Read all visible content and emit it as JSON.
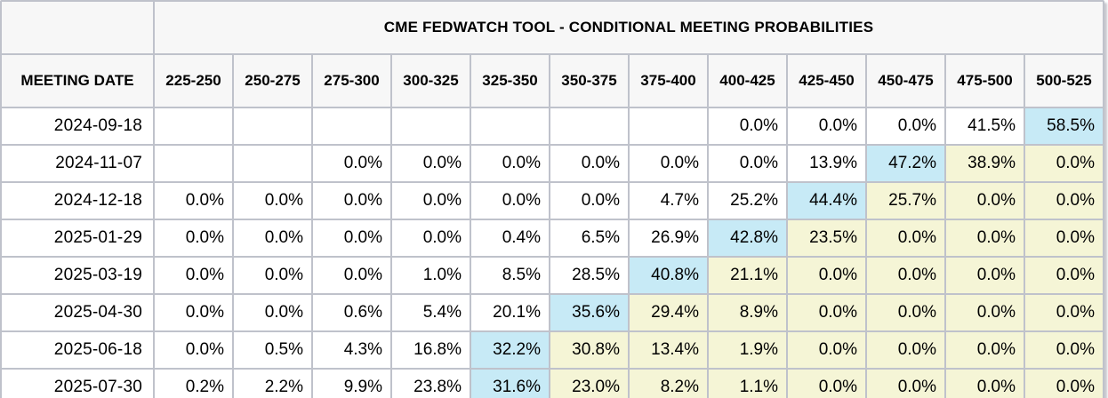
{
  "header": {
    "title": "CME FEDWATCH TOOL - CONDITIONAL MEETING PROBABILITIES",
    "meeting_date_label": "MEETING DATE",
    "rate_bins": [
      "225-250",
      "250-275",
      "275-300",
      "300-325",
      "325-350",
      "350-375",
      "375-400",
      "400-425",
      "425-450",
      "450-475",
      "475-500",
      "500-525"
    ]
  },
  "rows": [
    {
      "date": "2024-09-18",
      "values": [
        "",
        "",
        "",
        "",
        "",
        "",
        "",
        "0.0%",
        "0.0%",
        "0.0%",
        "41.5%",
        "58.5%"
      ],
      "blue_index": 11,
      "yellow_from": -1
    },
    {
      "date": "2024-11-07",
      "values": [
        "",
        "",
        "0.0%",
        "0.0%",
        "0.0%",
        "0.0%",
        "0.0%",
        "0.0%",
        "13.9%",
        "47.2%",
        "38.9%",
        "0.0%"
      ],
      "blue_index": 9,
      "yellow_from": 10
    },
    {
      "date": "2024-12-18",
      "values": [
        "0.0%",
        "0.0%",
        "0.0%",
        "0.0%",
        "0.0%",
        "0.0%",
        "4.7%",
        "25.2%",
        "44.4%",
        "25.7%",
        "0.0%",
        "0.0%"
      ],
      "blue_index": 8,
      "yellow_from": 9
    },
    {
      "date": "2025-01-29",
      "values": [
        "0.0%",
        "0.0%",
        "0.0%",
        "0.0%",
        "0.4%",
        "6.5%",
        "26.9%",
        "42.8%",
        "23.5%",
        "0.0%",
        "0.0%",
        "0.0%"
      ],
      "blue_index": 7,
      "yellow_from": 8
    },
    {
      "date": "2025-03-19",
      "values": [
        "0.0%",
        "0.0%",
        "0.0%",
        "1.0%",
        "8.5%",
        "28.5%",
        "40.8%",
        "21.1%",
        "0.0%",
        "0.0%",
        "0.0%",
        "0.0%"
      ],
      "blue_index": 6,
      "yellow_from": 7
    },
    {
      "date": "2025-04-30",
      "values": [
        "0.0%",
        "0.0%",
        "0.6%",
        "5.4%",
        "20.1%",
        "35.6%",
        "29.4%",
        "8.9%",
        "0.0%",
        "0.0%",
        "0.0%",
        "0.0%"
      ],
      "blue_index": 5,
      "yellow_from": 6
    },
    {
      "date": "2025-06-18",
      "values": [
        "0.0%",
        "0.5%",
        "4.3%",
        "16.8%",
        "32.2%",
        "30.8%",
        "13.4%",
        "1.9%",
        "0.0%",
        "0.0%",
        "0.0%",
        "0.0%"
      ],
      "blue_index": 4,
      "yellow_from": 5
    },
    {
      "date": "2025-07-30",
      "values": [
        "0.2%",
        "2.2%",
        "9.9%",
        "23.8%",
        "31.6%",
        "23.0%",
        "8.2%",
        "1.1%",
        "0.0%",
        "0.0%",
        "0.0%",
        "0.0%"
      ],
      "blue_index": 4,
      "yellow_from": 5
    }
  ],
  "colors": {
    "highlight_blue": "#c7eaf6",
    "highlight_yellow": "#f5f5d6",
    "header_background": "#f7f7f7",
    "gridline": "#bfc2cb"
  }
}
